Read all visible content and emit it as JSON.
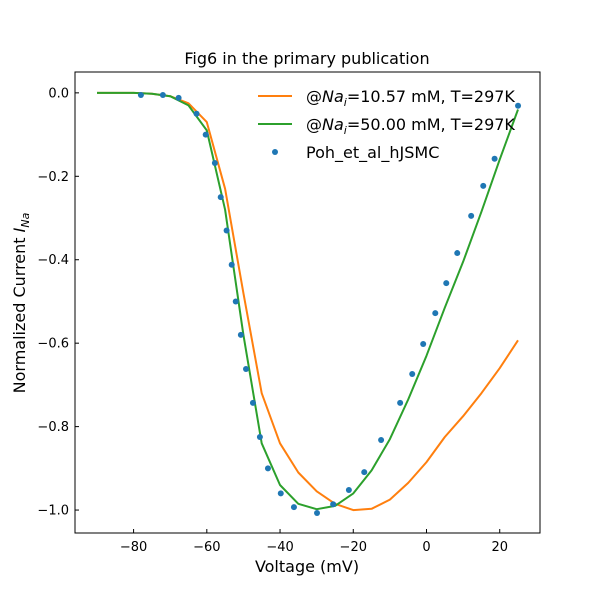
{
  "chart_data": {
    "type": "line",
    "title": "Fig6 in the primary publication",
    "xlabel": "Voltage (mV)",
    "ylabel": "Normalized Current I_Na",
    "ylabel_main": "Normalized Current ",
    "ylabel_var": "I",
    "ylabel_sub": "Na",
    "xlim": [
      -96,
      31
    ],
    "ylim": [
      -1.055,
      0.05
    ],
    "xticks": [
      -80,
      -60,
      -40,
      -20,
      0,
      20
    ],
    "xtick_labels": [
      "−80",
      "−60",
      "−40",
      "−20",
      "0",
      "20"
    ],
    "yticks": [
      0.0,
      -0.2,
      -0.4,
      -0.6,
      -0.8,
      -1.0
    ],
    "ytick_labels": [
      "0.0",
      "−0.2",
      "−0.4",
      "−0.6",
      "−0.8",
      "−1.0"
    ],
    "grid": false,
    "legend_placement": "top-right",
    "series": [
      {
        "name": "@Na_i=10.57 mM, T=297K",
        "legend_prefix": "@",
        "legend_var": "Na",
        "legend_sub": "i",
        "legend_suffix": "=10.57 mM, T=297K",
        "color": "#ff7f0e",
        "kind": "line",
        "x": [
          -90,
          -85,
          -80,
          -75,
          -70,
          -65,
          -60,
          -55,
          -50,
          -45,
          -40,
          -35,
          -30,
          -25,
          -20,
          -15,
          -10,
          -5,
          0,
          5,
          10,
          15,
          20,
          25
        ],
        "y": [
          0.0,
          0.0,
          0.0,
          -0.002,
          -0.008,
          -0.025,
          -0.07,
          -0.23,
          -0.48,
          -0.72,
          -0.84,
          -0.91,
          -0.955,
          -0.985,
          -1.0,
          -0.997,
          -0.975,
          -0.935,
          -0.885,
          -0.825,
          -0.775,
          -0.72,
          -0.66,
          -0.593
        ]
      },
      {
        "name": "@Na_i=50.00 mM, T=297K",
        "legend_prefix": "@",
        "legend_var": "Na",
        "legend_sub": "i",
        "legend_suffix": "=50.00 mM, T=297K",
        "color": "#2ca02c",
        "kind": "line",
        "x": [
          -90,
          -85,
          -80,
          -75,
          -70,
          -65,
          -60,
          -55,
          -50,
          -45,
          -40,
          -35,
          -30,
          -25,
          -20,
          -15,
          -10,
          -5,
          0,
          5,
          10,
          15,
          20,
          25
        ],
        "y": [
          0.0,
          0.0,
          0.0,
          -0.002,
          -0.008,
          -0.03,
          -0.09,
          -0.28,
          -0.58,
          -0.84,
          -0.94,
          -0.985,
          -0.998,
          -0.99,
          -0.96,
          -0.905,
          -0.83,
          -0.735,
          -0.63,
          -0.515,
          -0.405,
          -0.285,
          -0.16,
          -0.04
        ]
      },
      {
        "name": "Poh_et_al_hJSMC",
        "color": "#1f77b4",
        "kind": "scatter",
        "x": [
          -78,
          -72,
          -67.7,
          -62.8,
          -60.3,
          -57.8,
          -56.2,
          -54.6,
          -53.2,
          -52.1,
          -50.7,
          -49.3,
          -47.4,
          -45.5,
          -43.3,
          -39.8,
          -36.2,
          -29.9,
          -25.5,
          -21.2,
          -17.0,
          -12.4,
          -7.2,
          -3.9,
          -0.9,
          2.4,
          5.4,
          8.4,
          12.2,
          15.5,
          18.6,
          25.0
        ],
        "y": [
          -0.005,
          -0.005,
          -0.012,
          -0.05,
          -0.1,
          -0.168,
          -0.25,
          -0.33,
          -0.412,
          -0.5,
          -0.58,
          -0.662,
          -0.743,
          -0.825,
          -0.9,
          -0.96,
          -0.993,
          -1.007,
          -0.986,
          -0.952,
          -0.909,
          -0.832,
          -0.743,
          -0.674,
          -0.602,
          -0.528,
          -0.456,
          -0.384,
          -0.295,
          -0.223,
          -0.158,
          -0.031
        ]
      }
    ]
  }
}
